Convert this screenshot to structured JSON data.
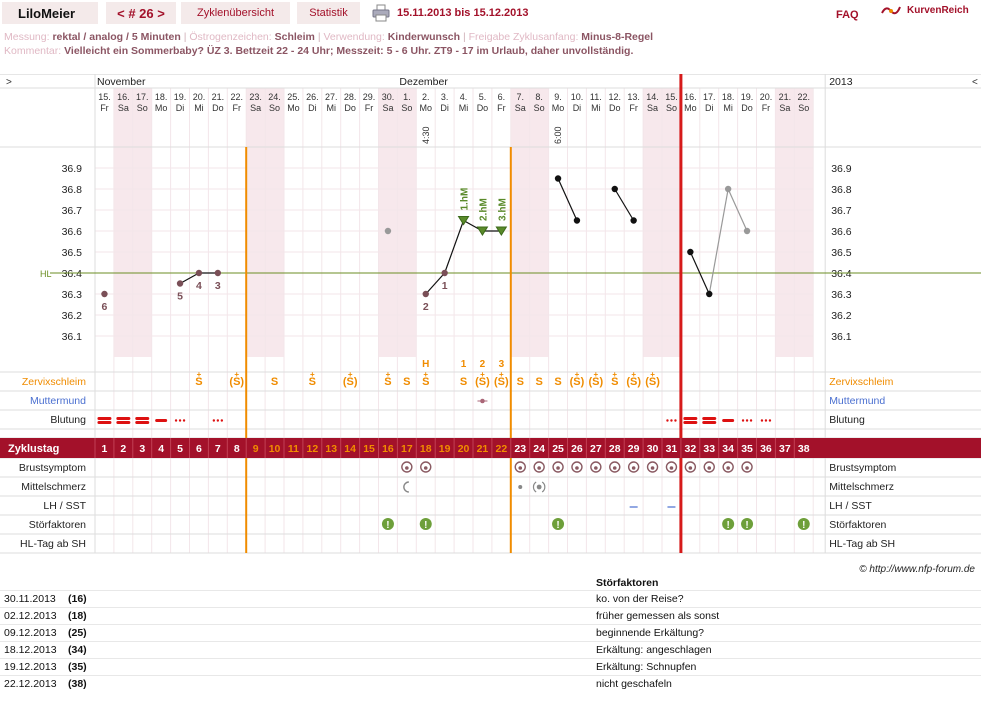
{
  "header": {
    "user": "LiloMeier",
    "cycle_nav": "< # 26 >",
    "tabs": [
      "Zyklenübersicht",
      "Statistik"
    ],
    "date_range": "15.11.2013 bis 15.12.2013",
    "faq": "FAQ",
    "brand": "KurvenReich"
  },
  "meta": {
    "messung_label": "Messung:",
    "messung": "rektal / analog / 5 Minuten",
    "oestrogen_label": "Östrogenzeichen:",
    "oestrogen": "Schleim",
    "verwendung_label": "Verwendung:",
    "verwendung": "Kinderwunsch",
    "freigabe_label": "Freigabe Zyklusanfang:",
    "freigabe": "Minus-8-Regel",
    "kommentar_label": "Kommentar:",
    "kommentar": "Vielleicht ein Sommerbaby? ÜZ 3. Bettzeit 22 - 24 Uhr; Messzeit: 5 - 6 Uhr. ZT9 - 17 im Urlaub, daher unvollständig."
  },
  "chart": {
    "nav_left": ">",
    "nav_right": "<",
    "months": [
      {
        "label": "November",
        "day": 1
      },
      {
        "label": "Dezember",
        "day": 17
      }
    ],
    "year": "2013",
    "dates": [
      "15.",
      "16.",
      "17.",
      "18.",
      "19.",
      "20.",
      "21.",
      "22.",
      "23.",
      "24.",
      "25.",
      "26.",
      "27.",
      "28.",
      "29.",
      "30.",
      "1.",
      "2.",
      "3.",
      "4.",
      "5.",
      "6.",
      "7.",
      "8.",
      "9.",
      "10.",
      "11.",
      "12.",
      "13.",
      "14.",
      "15.",
      "16.",
      "17.",
      "18.",
      "19.",
      "20.",
      "21.",
      "22."
    ],
    "weekdays": [
      "Fr",
      "Sa",
      "So",
      "Mo",
      "Di",
      "Mi",
      "Do",
      "Fr",
      "Sa",
      "So",
      "Mo",
      "Di",
      "Mi",
      "Do",
      "Fr",
      "Sa",
      "So",
      "Mo",
      "Di",
      "Mi",
      "Do",
      "Fr",
      "Sa",
      "So",
      "Mo",
      "Di",
      "Mi",
      "Do",
      "Fr",
      "Sa",
      "So",
      "Mo",
      "Di",
      "Mi",
      "Do",
      "Fr",
      "Sa",
      "So"
    ],
    "time_notes": [
      {
        "day": 18,
        "text": "4:30"
      },
      {
        "day": 25,
        "text": "6:00"
      }
    ],
    "y_ticks": [
      "36.9",
      "36.8",
      "36.7",
      "36.6",
      "36.5",
      "36.4",
      "36.3",
      "36.2",
      "36.1"
    ],
    "y_tick_values": [
      36.9,
      36.8,
      36.7,
      36.6,
      36.5,
      36.4,
      36.3,
      36.2,
      36.1
    ],
    "ymin": 36.0,
    "ymax": 37.0,
    "hl_label": "HL",
    "hl_value": 36.4,
    "temps": [
      {
        "day": 1,
        "v": 36.3,
        "label": "6",
        "excluded": false
      },
      {
        "day": 5,
        "v": 36.35,
        "label": "5",
        "excluded": false
      },
      {
        "day": 6,
        "v": 36.4,
        "label": "4",
        "excluded": false
      },
      {
        "day": 7,
        "v": 36.4,
        "label": "3",
        "excluded": false
      },
      {
        "day": 16,
        "v": 36.6,
        "label": "",
        "excluded": true
      },
      {
        "day": 18,
        "v": 36.3,
        "label": "2",
        "excluded": false
      },
      {
        "day": 19,
        "v": 36.4,
        "label": "1",
        "excluded": false
      },
      {
        "day": 20,
        "v": 36.65,
        "label": "1.hM",
        "excluded": false
      },
      {
        "day": 21,
        "v": 36.6,
        "label": "2.hM",
        "excluded": false
      },
      {
        "day": 22,
        "v": 36.6,
        "label": "3.hM",
        "excluded": false
      },
      {
        "day": 25,
        "v": 36.85,
        "label": "",
        "excluded": false
      },
      {
        "day": 26,
        "v": 36.65,
        "label": "",
        "excluded": false
      },
      {
        "day": 28,
        "v": 36.8,
        "label": "",
        "excluded": false
      },
      {
        "day": 29,
        "v": 36.65,
        "label": "",
        "excluded": false
      },
      {
        "day": 32,
        "v": 36.5,
        "label": "",
        "excluded": false
      },
      {
        "day": 33,
        "v": 36.3,
        "label": "",
        "excluded": false
      },
      {
        "day": 34,
        "v": 36.8,
        "label": "",
        "excluded": true
      },
      {
        "day": 35,
        "v": 36.6,
        "label": "",
        "excluded": true
      }
    ],
    "line_segments": [
      [
        5,
        6
      ],
      [
        6,
        7
      ],
      [
        18,
        19
      ],
      [
        19,
        20
      ],
      [
        20,
        21
      ],
      [
        21,
        22
      ],
      [
        25,
        26
      ],
      [
        28,
        29
      ],
      [
        32,
        33
      ]
    ],
    "grey_segments": [
      [
        33,
        34
      ],
      [
        34,
        35
      ]
    ],
    "counts": [
      {
        "day": 18,
        "text": "H"
      },
      {
        "day": 20,
        "text": "1"
      },
      {
        "day": 21,
        "text": "2"
      },
      {
        "day": 22,
        "text": "3"
      }
    ],
    "rows": {
      "zervix_label": "Zervixschleim",
      "mutter_label": "Muttermund",
      "blutung_label": "Blutung",
      "zyklustag_label": "Zyklustag",
      "brust_label": "Brustsymptom",
      "mittel_label": "Mittelschmerz",
      "lh_label": "LH / SST",
      "stoer_label": "Störfaktoren",
      "hltag_label": "HL-Tag ab SH"
    },
    "zervix": [
      {
        "day": 6,
        "s": "S+",
        "p": false
      },
      {
        "day": 8,
        "s": "S+",
        "p": true
      },
      {
        "day": 10,
        "s": "S",
        "p": false
      },
      {
        "day": 12,
        "s": "S+",
        "p": false
      },
      {
        "day": 14,
        "s": "S+",
        "p": true
      },
      {
        "day": 16,
        "s": "S+",
        "p": false
      },
      {
        "day": 17,
        "s": "S",
        "p": false
      },
      {
        "day": 18,
        "s": "S+",
        "p": false
      },
      {
        "day": 20,
        "s": "S",
        "p": false
      },
      {
        "day": 21,
        "s": "S+",
        "p": true
      },
      {
        "day": 22,
        "s": "S+",
        "p": true
      },
      {
        "day": 23,
        "s": "S",
        "p": false
      },
      {
        "day": 24,
        "s": "S",
        "p": false
      },
      {
        "day": 25,
        "s": "S",
        "p": false
      },
      {
        "day": 26,
        "s": "S+",
        "p": true
      },
      {
        "day": 27,
        "s": "S+",
        "p": true
      },
      {
        "day": 28,
        "s": "S+",
        "p": false
      },
      {
        "day": 29,
        "s": "S+",
        "p": true
      },
      {
        "day": 30,
        "s": "S+",
        "p": true
      }
    ],
    "muttermund": [
      {
        "day": 21
      }
    ],
    "blutung": [
      {
        "day": 1,
        "t": "heavy"
      },
      {
        "day": 2,
        "t": "heavy"
      },
      {
        "day": 3,
        "t": "heavy"
      },
      {
        "day": 4,
        "t": "medium"
      },
      {
        "day": 5,
        "t": "spot"
      },
      {
        "day": 7,
        "t": "spot"
      },
      {
        "day": 31,
        "t": "spot"
      },
      {
        "day": 32,
        "t": "heavy"
      },
      {
        "day": 33,
        "t": "heavy"
      },
      {
        "day": 34,
        "t": "medium"
      },
      {
        "day": 35,
        "t": "spot"
      },
      {
        "day": 36,
        "t": "spot"
      }
    ],
    "fertile_start": 9,
    "fertile_end": 22,
    "cycle_end_day": 31,
    "brust": [
      17,
      18,
      23,
      24,
      25,
      26,
      27,
      28,
      29,
      30,
      31,
      32,
      33,
      34,
      35
    ],
    "mittel": [
      {
        "day": 17,
        "t": "arc"
      },
      {
        "day": 23,
        "t": "dot"
      },
      {
        "day": 24,
        "t": "ring"
      }
    ],
    "lh": [
      29,
      31
    ],
    "stoer": [
      16,
      18,
      25,
      34,
      35,
      38
    ],
    "copyright": "© http://www.nfp-forum.de"
  },
  "footer": {
    "title": "Störfaktoren",
    "rows": [
      {
        "date": "30.11.2013",
        "day": "(16)",
        "note": "ko. von der Reise?"
      },
      {
        "date": "02.12.2013",
        "day": "(18)",
        "note": "früher gemessen als sonst"
      },
      {
        "date": "09.12.2013",
        "day": "(25)",
        "note": "beginnende Erkältung?"
      },
      {
        "date": "18.12.2013",
        "day": "(34)",
        "note": "Erkältung: angeschlagen"
      },
      {
        "date": "19.12.2013",
        "day": "(35)",
        "note": "Erkältung: Schnupfen"
      },
      {
        "date": "22.12.2013",
        "day": "(38)",
        "note": "nicht geschafeln"
      }
    ]
  },
  "colors": {
    "accent": "#a3112a",
    "orange": "#f08c00",
    "green": "#5a8a2a",
    "grid": "#f3e6ea",
    "weekend": "#f7e8ec",
    "cycle_bar": "#a3112a"
  }
}
